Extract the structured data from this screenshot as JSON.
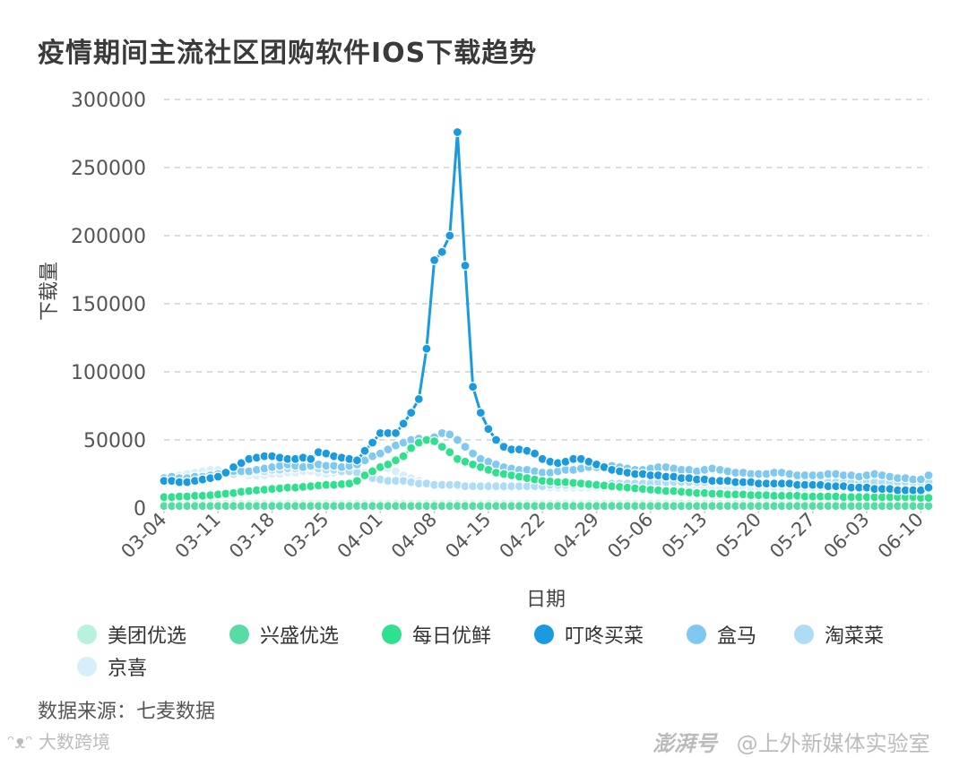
{
  "title": "疫情期间主流社区团购软件IOS下载趋势",
  "source": "数据来源：七麦数据",
  "watermarks": {
    "left": "大数跨境",
    "right_brand": "澎湃号",
    "right_account": "@上外新媒体实验室"
  },
  "chart_data": {
    "type": "line",
    "title": "疫情期间主流社区团购软件IOS下载趋势",
    "xlabel": "日期",
    "ylabel": "下载量",
    "ylim": [
      0,
      300000
    ],
    "yticks": [
      0,
      50000,
      100000,
      150000,
      200000,
      250000,
      300000
    ],
    "ytick_labels": [
      "0",
      "50000",
      "100000",
      "150000",
      "200000",
      "250000",
      "300000"
    ],
    "grid": true,
    "legend_position": "bottom",
    "x": [
      "03-04",
      "03-05",
      "03-06",
      "03-07",
      "03-08",
      "03-09",
      "03-10",
      "03-11",
      "03-12",
      "03-13",
      "03-14",
      "03-15",
      "03-16",
      "03-17",
      "03-18",
      "03-19",
      "03-20",
      "03-21",
      "03-22",
      "03-23",
      "03-24",
      "03-25",
      "03-26",
      "03-27",
      "03-28",
      "03-29",
      "03-30",
      "03-31",
      "04-01",
      "04-02",
      "04-03",
      "04-04",
      "04-05",
      "04-06",
      "04-07",
      "04-08",
      "04-09",
      "04-10",
      "04-11",
      "04-12",
      "04-13",
      "04-14",
      "04-15",
      "04-16",
      "04-17",
      "04-18",
      "04-19",
      "04-20",
      "04-21",
      "04-22",
      "04-23",
      "04-24",
      "04-25",
      "04-26",
      "04-27",
      "04-28",
      "04-29",
      "04-30",
      "05-01",
      "05-02",
      "05-03",
      "05-04",
      "05-05",
      "05-06",
      "05-07",
      "05-08",
      "05-09",
      "05-10",
      "05-11",
      "05-12",
      "05-13",
      "05-14",
      "05-15",
      "05-16",
      "05-17",
      "05-18",
      "05-19",
      "05-20",
      "05-21",
      "05-22",
      "05-23",
      "05-24",
      "05-25",
      "05-26",
      "05-27",
      "05-28",
      "05-29",
      "05-30",
      "05-31",
      "06-01",
      "06-02",
      "06-03",
      "06-04",
      "06-05",
      "06-06",
      "06-07",
      "06-08",
      "06-09",
      "06-10",
      "06-11"
    ],
    "xtick_labels": [
      "03-04",
      "03-11",
      "03-18",
      "03-25",
      "04-01",
      "04-08",
      "04-15",
      "04-22",
      "04-29",
      "05-06",
      "05-13",
      "05-20",
      "05-27",
      "06-03",
      "06-10"
    ],
    "series": [
      {
        "name": "美团优选",
        "color": "#b9f2dc",
        "values": [
          3000,
          3000,
          3000,
          3000,
          3000,
          3000,
          3000,
          3000,
          3000,
          3000,
          3000,
          3000,
          3000,
          3000,
          3000,
          3000,
          3000,
          3000,
          3000,
          3000,
          3000,
          3000,
          3000,
          3000,
          3000,
          3000,
          3000,
          3000,
          3000,
          3000,
          3000,
          3000,
          3000,
          3000,
          3000,
          3000,
          3000,
          3000,
          3000,
          3000,
          3000,
          3000,
          3000,
          3000,
          3000,
          3000,
          3000,
          3000,
          3000,
          3000,
          3000,
          3000,
          3000,
          3000,
          3000,
          3000,
          3000,
          3000,
          3000,
          3000,
          3000,
          3000,
          3000,
          3000,
          3000,
          3000,
          3000,
          3000,
          3000,
          3000,
          3000,
          3000,
          3000,
          3000,
          3000,
          3000,
          3000,
          3000,
          3000,
          3000,
          3000,
          3000,
          3000,
          3000,
          3000,
          3000,
          3000,
          3000,
          3000,
          3000,
          3000,
          3000,
          3000,
          3000,
          3000,
          3000,
          3000,
          3000,
          3000,
          3000
        ]
      },
      {
        "name": "兴盛优选",
        "color": "#58dca6",
        "values": [
          1500,
          1500,
          1500,
          1500,
          1500,
          1500,
          1500,
          1500,
          1500,
          1500,
          1500,
          1500,
          1500,
          1500,
          1500,
          1500,
          1500,
          1500,
          1500,
          1500,
          1500,
          1500,
          1500,
          1500,
          1500,
          1500,
          1500,
          1500,
          1500,
          1500,
          1500,
          1500,
          1500,
          1500,
          1500,
          1500,
          1500,
          1500,
          1500,
          1500,
          1500,
          1500,
          1500,
          1500,
          1500,
          1500,
          1500,
          1500,
          1500,
          1500,
          1500,
          1500,
          1500,
          1500,
          1500,
          1500,
          1500,
          1500,
          1500,
          1500,
          1500,
          1500,
          1500,
          1500,
          1500,
          1500,
          1500,
          1500,
          1500,
          1500,
          1500,
          1500,
          1500,
          1500,
          1500,
          1500,
          1500,
          1500,
          1500,
          1500,
          1500,
          1500,
          1500,
          1500,
          1500,
          1500,
          1500,
          1500,
          1500,
          1500,
          1500,
          1500,
          1500,
          1500,
          1500,
          1500,
          1500,
          1500,
          1500,
          1500
        ]
      },
      {
        "name": "每日优鲜",
        "color": "#2fe08e",
        "values": [
          8000,
          8000,
          8500,
          8500,
          9000,
          9000,
          9500,
          10000,
          10500,
          11000,
          12000,
          12500,
          13000,
          13500,
          14000,
          14500,
          15000,
          15000,
          15500,
          16000,
          16500,
          17000,
          17000,
          17500,
          18000,
          20000,
          24000,
          27000,
          30000,
          32000,
          35000,
          38000,
          44000,
          48000,
          50000,
          49000,
          45000,
          41000,
          36000,
          34000,
          32000,
          30000,
          28000,
          26000,
          25000,
          24000,
          23000,
          22000,
          21000,
          20000,
          19500,
          19000,
          19000,
          18500,
          18000,
          17500,
          17000,
          16500,
          16000,
          15500,
          15000,
          14500,
          14000,
          13500,
          13000,
          12500,
          12500,
          12000,
          11500,
          11000,
          11000,
          10500,
          10500,
          10000,
          10000,
          10000,
          9500,
          9500,
          9500,
          9000,
          9000,
          9000,
          9000,
          8500,
          8500,
          8500,
          8500,
          8500,
          8000,
          8000,
          8000,
          8000,
          8000,
          8000,
          8000,
          8000,
          8000,
          8000,
          7500,
          7500
        ]
      },
      {
        "name": "叮咚买菜",
        "color": "#1a9be0",
        "values": [
          20000,
          20000,
          19000,
          19000,
          20000,
          21000,
          22000,
          23000,
          26000,
          30000,
          33000,
          36000,
          37000,
          38000,
          38000,
          37000,
          36000,
          36000,
          37000,
          36000,
          41000,
          40000,
          38000,
          37000,
          36000,
          35000,
          42000,
          48000,
          55000,
          55000,
          55000,
          62000,
          70000,
          80000,
          117000,
          182000,
          188000,
          200000,
          276000,
          178000,
          89000,
          70000,
          58000,
          50000,
          45000,
          43000,
          43000,
          42000,
          40000,
          36000,
          34000,
          33000,
          34000,
          36000,
          36000,
          34000,
          32000,
          30000,
          28000,
          27000,
          26000,
          25000,
          25000,
          24000,
          24000,
          23000,
          23000,
          22000,
          22000,
          21000,
          21000,
          20000,
          20000,
          20000,
          19000,
          19000,
          19000,
          18000,
          18000,
          18000,
          18000,
          18000,
          17000,
          17000,
          17000,
          17000,
          16000,
          16000,
          16000,
          15000,
          15000,
          15000,
          14000,
          14000,
          14000,
          13000,
          13000,
          13000,
          13000,
          15000
        ]
      },
      {
        "name": "盒马",
        "color": "#7fc8f0",
        "values": [
          22000,
          23000,
          22000,
          22000,
          23000,
          23000,
          24000,
          25000,
          26000,
          27000,
          27000,
          27000,
          28000,
          29000,
          30000,
          31000,
          32000,
          31000,
          30000,
          31000,
          32000,
          31000,
          31000,
          30000,
          31000,
          32000,
          35000,
          38000,
          40000,
          43000,
          46000,
          48000,
          50000,
          51000,
          50000,
          52000,
          55000,
          54000,
          50000,
          45000,
          40000,
          36000,
          34000,
          32000,
          30000,
          29000,
          28000,
          28000,
          27000,
          26000,
          26000,
          27000,
          28000,
          28000,
          29000,
          30000,
          30000,
          31000,
          31000,
          30000,
          29000,
          28000,
          28000,
          29000,
          30000,
          30000,
          29000,
          28000,
          28000,
          27000,
          28000,
          29000,
          28000,
          27000,
          26000,
          26000,
          25000,
          25000,
          25000,
          26000,
          26000,
          25000,
          24000,
          24000,
          24000,
          24000,
          25000,
          25000,
          24000,
          24000,
          23000,
          24000,
          25000,
          24000,
          23000,
          22000,
          22000,
          21000,
          21000,
          24000
        ]
      },
      {
        "name": "淘菜菜",
        "color": "#aedcf7",
        "values": [
          20000,
          20000,
          21000,
          22000,
          22000,
          23000,
          24000,
          24000,
          25000,
          25000,
          26000,
          26000,
          27000,
          27000,
          28000,
          28000,
          29000,
          29000,
          30000,
          30000,
          29000,
          28000,
          28000,
          27000,
          27000,
          26000,
          24000,
          22000,
          21000,
          20000,
          20000,
          20000,
          19000,
          18000,
          18000,
          17000,
          17000,
          17000,
          17000,
          16000,
          16000,
          16000,
          16000,
          16000,
          16000,
          16000,
          16000,
          16000,
          16000,
          16000,
          17000,
          17000,
          17000,
          17000,
          17000,
          17000,
          17000,
          17000,
          18000,
          18000,
          18000,
          18000,
          18000,
          18000,
          19000,
          19000,
          19000,
          19000,
          19000,
          19000,
          19000,
          19000,
          19000,
          19000,
          19000,
          19000,
          19000,
          19000,
          19000,
          19000,
          19000,
          19000,
          19000,
          19000,
          19000,
          19000,
          19000,
          19000,
          19000,
          19000,
          19000,
          19000,
          19000,
          19000,
          19000,
          19000,
          19000,
          19000,
          19000,
          19000
        ]
      },
      {
        "name": "京喜",
        "color": "#d7eefb",
        "values": [
          22000,
          23000,
          24000,
          25000,
          26000,
          27000,
          28000,
          28000,
          27000,
          26000,
          25000,
          24000,
          24000,
          24000,
          25000,
          25000,
          26000,
          26000,
          27000,
          27000,
          26000,
          25000,
          26000,
          27000,
          28000,
          27000,
          26000,
          28000,
          30000,
          29000,
          27000,
          24000,
          22000,
          20000,
          19000,
          18000,
          17000,
          17000,
          16000,
          16000,
          16000,
          15000,
          15000,
          15000,
          15000,
          15000,
          15000,
          15000,
          15000,
          15000,
          15000,
          15000,
          15000,
          15000,
          15000,
          15000,
          15000,
          15000,
          15000,
          15000,
          15000,
          15000,
          15000,
          15000,
          15000,
          15000,
          15000,
          15000,
          15000,
          15000,
          15000,
          15000,
          15000,
          15000,
          15000,
          15000,
          15000,
          15000,
          15000,
          15000,
          15000,
          15000,
          15000,
          15000,
          15000,
          15000,
          15000,
          15000,
          15000,
          15000,
          15000,
          15000,
          15000,
          15000,
          15000,
          15000,
          15000,
          15000,
          15000,
          15000
        ]
      }
    ]
  }
}
